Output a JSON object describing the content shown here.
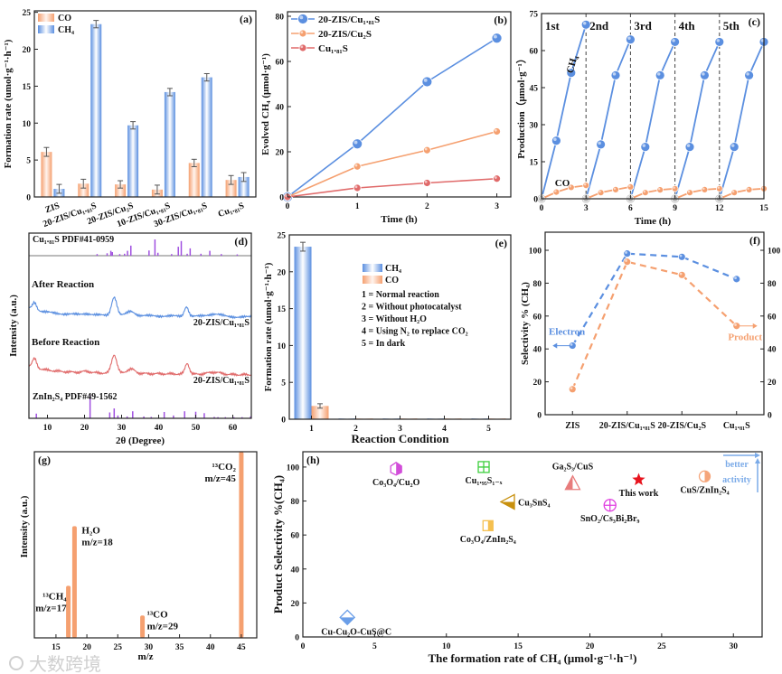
{
  "figure": {
    "watermark": "大数跨境"
  },
  "colors": {
    "blue": "#5b8fe0",
    "orange": "#f5a070",
    "red": "#e06a6a",
    "purple": "#a050e0",
    "annot": "#7aaae8"
  },
  "chart_data": [
    {
      "panel": "(a)",
      "type": "bar",
      "xlabel": "",
      "ylabel": "Formation rate (umol·g⁻¹·h⁻¹)",
      "categories": [
        "ZIS",
        "20-ZIS/Cu₁.₈₁S",
        "20-ZIS/Cu₂S",
        "10-ZIS/Cu₁.₈₁S",
        "30-ZIS/Cu₁.₈₁S",
        "Cu₁.₈₁S"
      ],
      "series": [
        {
          "name": "CO",
          "values": [
            6.1,
            1.8,
            1.7,
            1.0,
            4.6,
            2.3
          ],
          "errors": [
            0.6,
            0.6,
            0.5,
            0.6,
            0.5,
            0.6
          ]
        },
        {
          "name": "CH₄",
          "values": [
            1.1,
            23.4,
            9.7,
            14.2,
            16.2,
            2.7
          ],
          "errors": [
            0.6,
            0.5,
            0.5,
            0.5,
            0.5,
            0.6
          ]
        }
      ],
      "ylim": [
        0,
        25.2
      ],
      "yticks": [
        0,
        5,
        10,
        15,
        20,
        25
      ],
      "legend": "top-left"
    },
    {
      "panel": "(b)",
      "type": "line",
      "xlabel": "Time (h)",
      "ylabel": "Evolved CH₄ (μmol·g⁻¹)",
      "x": [
        0,
        1,
        2,
        3
      ],
      "series": [
        {
          "name": "20-ZIS/Cu₁.₈₁S",
          "values": [
            0,
            23.5,
            51,
            70.3
          ]
        },
        {
          "name": "20-ZIS/Cu₂S",
          "values": [
            0,
            13.5,
            20.7,
            29
          ]
        },
        {
          "name": "Cu₁.₈₁S",
          "values": [
            0,
            4,
            6.2,
            8.1
          ]
        }
      ],
      "xlim": [
        0,
        3.2
      ],
      "ylim": [
        0,
        82
      ],
      "xticks": [
        0,
        1,
        2,
        3
      ],
      "yticks": [
        0,
        20,
        40,
        60,
        80
      ],
      "legend": "top-left"
    },
    {
      "panel": "(c)",
      "type": "line",
      "xlabel": "Time (h)",
      "ylabel": "Production（μmol·g⁻¹）",
      "cycles": [
        "1st",
        "2nd",
        "3rd",
        "4th",
        "5th"
      ],
      "series": [
        {
          "name": "CH₄",
          "cycles": [
            [
              0,
              23.5,
              51,
              70.5
            ],
            [
              0,
              22,
              50,
              64.5
            ],
            [
              0,
              21,
              50,
              63.5
            ],
            [
              0,
              21,
              50,
              63.5
            ],
            [
              0,
              21,
              50,
              63.5
            ]
          ]
        },
        {
          "name": "CO",
          "cycles": [
            [
              0,
              2.7,
              4.6,
              5.4
            ],
            [
              0,
              2.5,
              3.7,
              4.8
            ],
            [
              0,
              2.5,
              3.6,
              4.1
            ],
            [
              0,
              2.5,
              3.7,
              4.1
            ],
            [
              0,
              2.5,
              3.7,
              4.1
            ]
          ]
        }
      ],
      "xlim": [
        0,
        15
      ],
      "ylim": [
        0,
        75
      ],
      "xticks": [
        0,
        3,
        6,
        9,
        12,
        15
      ],
      "yticks": [
        0,
        15,
        30,
        45,
        60,
        75
      ]
    },
    {
      "panel": "(d)",
      "type": "line",
      "xlabel": "2θ (Degree)",
      "ylabel": "Intensity (a.u.)",
      "xlim": [
        5,
        65
      ],
      "xticks": [
        10,
        20,
        30,
        40,
        50,
        60
      ],
      "reference_top": {
        "label": "Cu₁.₈₁S PDF#41-0959",
        "peaks": [
          [
            23.4,
            0.1
          ],
          [
            26.1,
            0.15
          ],
          [
            27.1,
            0.3
          ],
          [
            27.5,
            0.22
          ],
          [
            29.5,
            0.1
          ],
          [
            30.8,
            0.12
          ],
          [
            31.6,
            0.3
          ],
          [
            32.5,
            0.62
          ],
          [
            37.4,
            0.32
          ],
          [
            39.0,
            1.0
          ],
          [
            39.8,
            0.18
          ],
          [
            43.5,
            0.1
          ],
          [
            45.3,
            0.55
          ],
          [
            46.1,
            0.9
          ],
          [
            47.7,
            0.12
          ],
          [
            48.5,
            0.45
          ],
          [
            51.4,
            0.12
          ],
          [
            53.8,
            0.3
          ],
          [
            56.9,
            0.1
          ],
          [
            61.2,
            0.08
          ]
        ]
      },
      "reference_bottom": {
        "label": "ZnIn₂S₄ PDF#49-1562",
        "peaks": [
          [
            7.0,
            0.2
          ],
          [
            21.5,
            1.0
          ],
          [
            26.8,
            0.25
          ],
          [
            28.0,
            0.42
          ],
          [
            29.0,
            0.12
          ],
          [
            31.5,
            0.08
          ],
          [
            33.0,
            0.3
          ],
          [
            36.0,
            0.08
          ],
          [
            38.0,
            0.06
          ],
          [
            41.5,
            0.27
          ],
          [
            44.0,
            0.12
          ],
          [
            47.0,
            0.3
          ],
          [
            50.0,
            0.28
          ],
          [
            52.3,
            0.22
          ],
          [
            55.0,
            0.06
          ],
          [
            56.0,
            0.05
          ],
          [
            58.0,
            0.05
          ],
          [
            60.3,
            0.05
          ],
          [
            62.5,
            0.05
          ],
          [
            64.8,
            0.08
          ]
        ]
      },
      "patterns": [
        {
          "name": "After Reaction",
          "sample": "20-ZIS/Cu₁.₈₁S",
          "peaks": [
            [
              6.5,
              0.35,
              0.8
            ],
            [
              20.5,
              0.06,
              1.5
            ],
            [
              28,
              0.85,
              1.0
            ],
            [
              32.5,
              0.2,
              1.5
            ],
            [
              47.5,
              0.45,
              0.8
            ],
            [
              55,
              0.12,
              2.5
            ]
          ]
        },
        {
          "name": "Before Reaction",
          "sample": "20-ZIS/Cu₁.₈₁S",
          "peaks": [
            [
              6.5,
              0.4,
              0.8
            ],
            [
              20.5,
              0.06,
              1.5
            ],
            [
              28,
              0.85,
              1.0
            ],
            [
              32.5,
              0.2,
              1.5
            ],
            [
              47.7,
              0.5,
              0.8
            ],
            [
              55,
              0.1,
              2.5
            ]
          ]
        }
      ]
    },
    {
      "panel": "(e)",
      "type": "bar",
      "xlabel": "Reaction Condition",
      "ylabel": "Formation rate (umol·g⁻¹·h⁻¹)",
      "categories": [
        "1",
        "2",
        "3",
        "4",
        "5"
      ],
      "series": [
        {
          "name": "CH₄",
          "values": [
            23.4,
            0.1,
            0.1,
            0.1,
            0.1
          ],
          "errors": [
            0.6,
            0,
            0,
            0,
            0
          ]
        },
        {
          "name": "CO",
          "values": [
            1.8,
            0.1,
            0.1,
            0.1,
            0.1
          ],
          "errors": [
            0.3,
            0,
            0,
            0,
            0
          ]
        }
      ],
      "legend_notes": [
        "1 = Normal reaction",
        "2 = Without photocatalyst",
        "3 = Without H₂O",
        "4 = Using N₂ to replace CO₂",
        "5 = In dark"
      ],
      "xlim": [
        0.5,
        5.5
      ],
      "ylim": [
        0,
        25
      ],
      "yticks": [
        0,
        5,
        10,
        15,
        20,
        25
      ],
      "legend": "center"
    },
    {
      "panel": "(f)",
      "type": "line",
      "xlabel": "",
      "ylabel": "Selectivity % (CH₄)",
      "categories": [
        "ZIS",
        "20-ZIS/Cu₁.₈₁S",
        "20-ZIS/Cu₂S",
        "Cu₁.₈₁S"
      ],
      "series": [
        {
          "name": "Electron",
          "values": [
            42,
            98,
            96,
            82.5
          ],
          "axis": "left"
        },
        {
          "name": "Product",
          "values": [
            15.5,
            93,
            85,
            54
          ],
          "axis": "right"
        }
      ],
      "xlim": [
        -0.5,
        3.5
      ],
      "ylim": [
        0,
        111
      ],
      "yticks": [
        0,
        20,
        40,
        60,
        80,
        100
      ]
    },
    {
      "panel": "(g)",
      "type": "bar",
      "xlabel": "m/z",
      "ylabel": "Intensity (a.u.)",
      "peaks": [
        {
          "species": "¹³CH₄",
          "label": "m/z=17",
          "x": 17,
          "value": 0.28
        },
        {
          "species": "H₂O",
          "label": "m/z=18",
          "x": 18,
          "value": 0.6
        },
        {
          "species": "¹³CO",
          "label": "m/z=29",
          "x": 29,
          "value": 0.12
        },
        {
          "species": "¹³CO₂",
          "label": "m/z=45",
          "x": 45,
          "value": 1.0
        }
      ],
      "xlim": [
        11.5,
        47.5
      ],
      "ylim": [
        0,
        1
      ],
      "xticks": [
        15,
        20,
        25,
        30,
        35,
        40,
        45
      ]
    },
    {
      "panel": "(h)",
      "type": "scatter",
      "xlabel": "The formation rate of CH₄ (μmol·g⁻¹·h⁻¹)",
      "ylabel": "Product Selectivity %(CH₄)",
      "points": [
        {
          "label": "Co₃O₄/Cu₂O",
          "x": 6.5,
          "y": 99,
          "marker": "hexagon",
          "color": "#d24dd9"
        },
        {
          "label": "Cu₁.₉₅S₁₋ₓ",
          "x": 12.6,
          "y": 100,
          "marker": "square-grid",
          "color": "#3fcf3f"
        },
        {
          "label": "Ga₂S₃/CuS",
          "x": 18.8,
          "y": 90,
          "marker": "triangle",
          "color": "#e87c7c"
        },
        {
          "label": "This work",
          "x": 23.4,
          "y": 92.5,
          "marker": "star",
          "color": "#e8141e"
        },
        {
          "label": "CuS/ZnIn₂S₄",
          "x": 28,
          "y": 94.5,
          "marker": "half-circle",
          "color": "#f5a57a"
        },
        {
          "label": "Cu₃SnS₄",
          "x": 14.3,
          "y": 79.5,
          "marker": "left-triangle",
          "color": "#c8900e"
        },
        {
          "label": "SnO₂/Cs₃Bi₂Br₉",
          "x": 21.4,
          "y": 77.5,
          "marker": "circle-cross",
          "color": "#e040e0"
        },
        {
          "label": "Co₃O₄/ZnIn₂S₄",
          "x": 12.9,
          "y": 65.5,
          "marker": "half-square",
          "color": "#f5c050"
        },
        {
          "label": "Cu-Cu₂O-CuS@C",
          "x": 3.1,
          "y": 11.5,
          "marker": "diamond",
          "color": "#6a9ee8"
        }
      ],
      "annotation": [
        "better",
        "activity"
      ],
      "xlim": [
        0,
        32
      ],
      "ylim": [
        0,
        109
      ],
      "xticks": [
        0,
        5,
        10,
        15,
        20,
        25,
        30
      ],
      "yticks": [
        0,
        20,
        40,
        60,
        80,
        100
      ]
    }
  ]
}
